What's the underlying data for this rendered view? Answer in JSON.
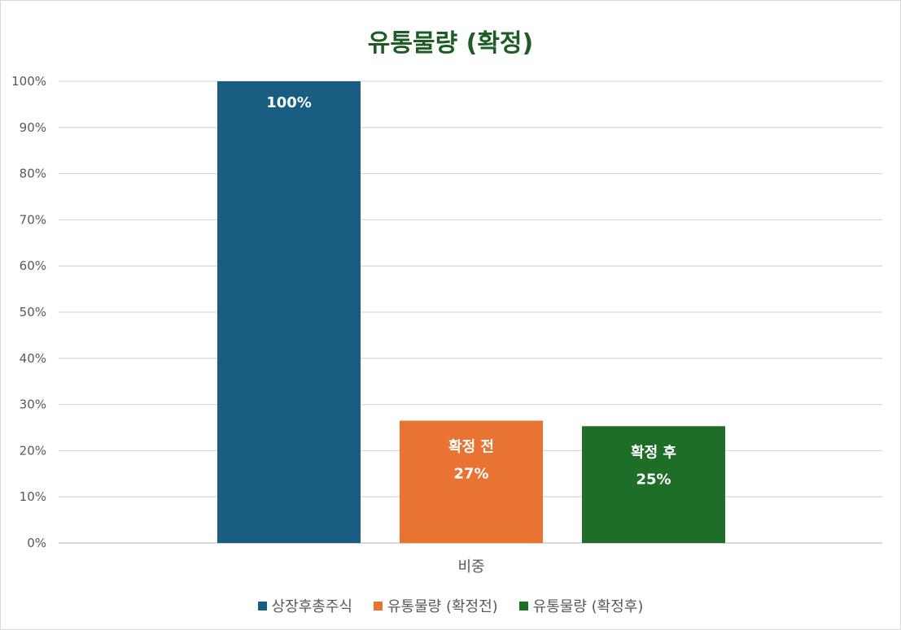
{
  "chart_data": {
    "type": "bar",
    "title": "유통물량 (확정)",
    "categories": [
      "비중"
    ],
    "ylim": [
      0,
      100
    ],
    "ytick_step": 10,
    "y_unit": "%",
    "grid": true,
    "legend_position": "bottom",
    "series": [
      {
        "name": "상장후총주식",
        "values": [
          100
        ],
        "color": "#175e82",
        "label_lines": [
          "100%"
        ]
      },
      {
        "name": "유통물량 (확정전)",
        "values": [
          26.5
        ],
        "color": "#e97332",
        "label_lines": [
          "확정 전",
          "27%"
        ]
      },
      {
        "name": "유통물량 (확정후)",
        "values": [
          25.3
        ],
        "color": "#1e6e28",
        "label_lines": [
          "확정 후",
          "25%"
        ]
      }
    ]
  }
}
